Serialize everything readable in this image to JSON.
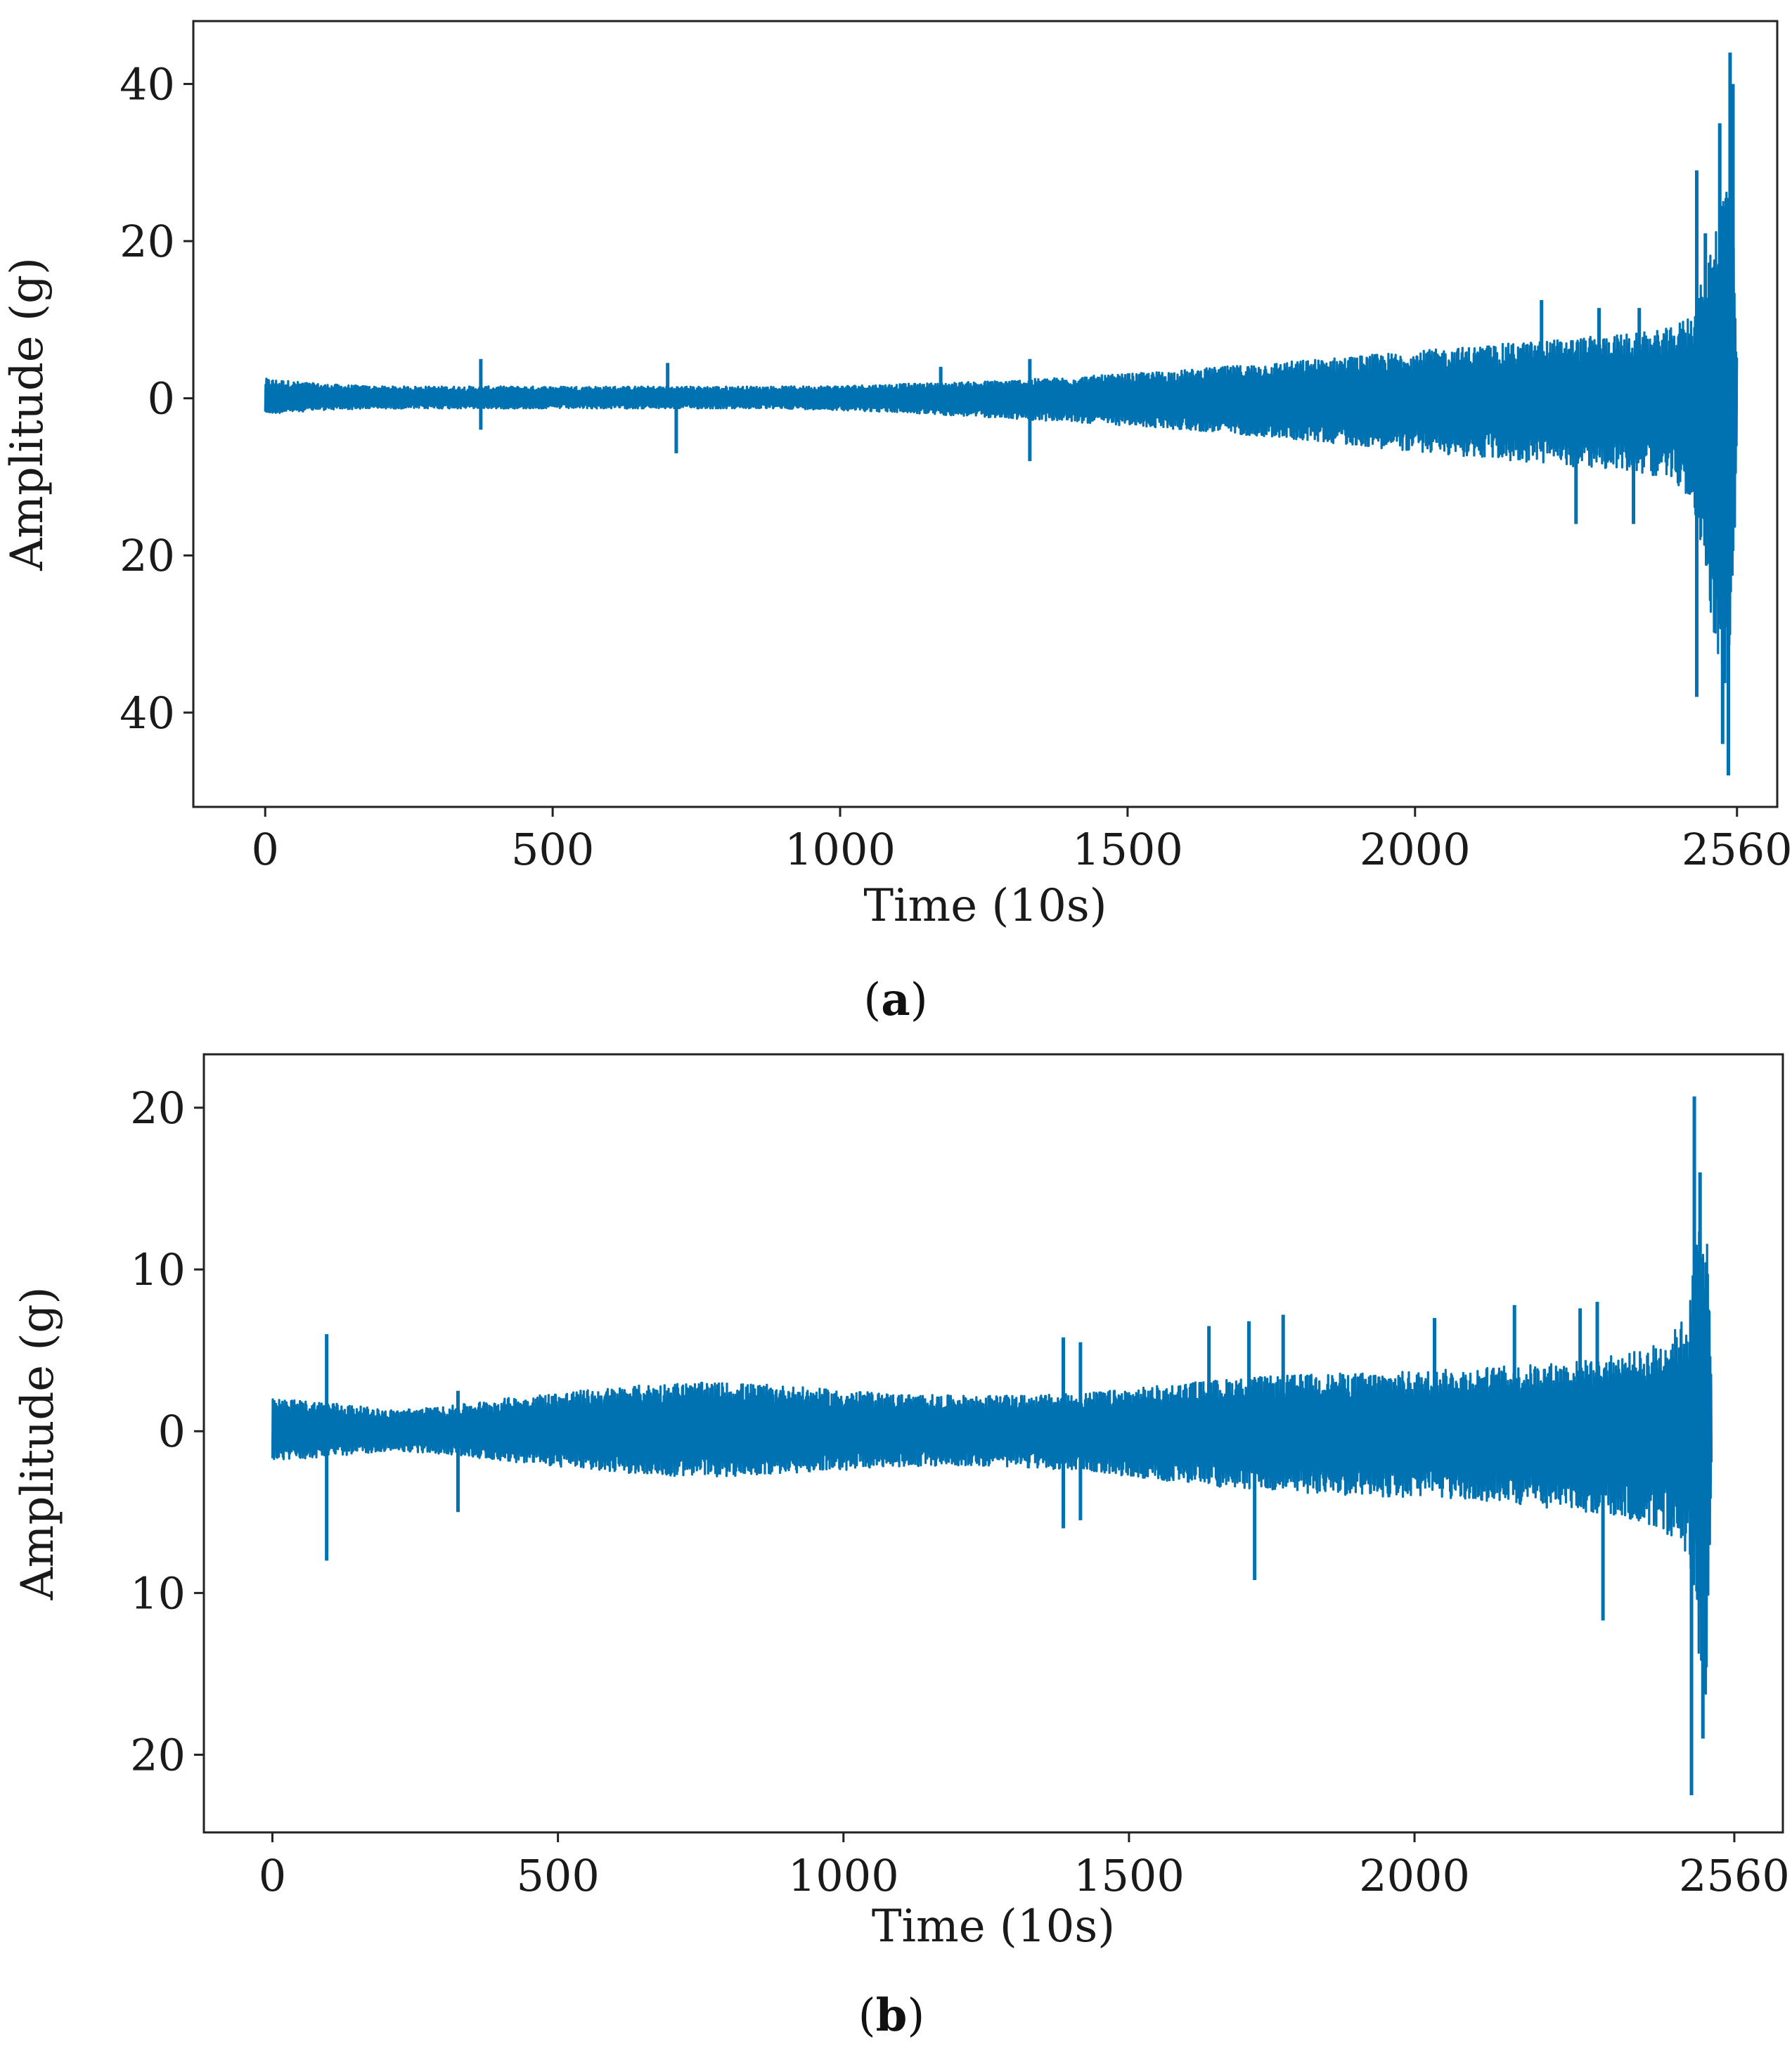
{
  "chart_data": [
    {
      "type": "line",
      "panel_label": "a",
      "title": "",
      "xlabel": "Time (10s)",
      "ylabel": "Amplitude (g)",
      "xlim": [
        -125,
        2630
      ],
      "ylim": [
        -52,
        48
      ],
      "xticks": [
        0,
        500,
        1000,
        1500,
        2000,
        2560
      ],
      "xtick_labels": [
        "0",
        "500",
        "1000",
        "1500",
        "2000",
        "2560"
      ],
      "yticks": [
        40,
        20,
        0,
        -20,
        -40
      ],
      "ytick_labels": [
        "40",
        "20",
        "0",
        "20",
        "40"
      ],
      "grid": false,
      "line_color": "#0072b2",
      "envelope": {
        "x": [
          0,
          100,
          200,
          300,
          400,
          500,
          600,
          700,
          800,
          900,
          1000,
          1100,
          1200,
          1300,
          1400,
          1500,
          1600,
          1700,
          1800,
          1900,
          2000,
          2100,
          2200,
          2300,
          2400,
          2450,
          2480,
          2500,
          2520,
          2540,
          2550,
          2560
        ],
        "upper": [
          2.5,
          1.8,
          1.5,
          1.5,
          1.5,
          1.5,
          1.5,
          1.5,
          1.5,
          1.5,
          1.6,
          1.8,
          2.0,
          2.3,
          2.7,
          3.1,
          3.6,
          4.2,
          4.8,
          5.4,
          6.0,
          6.6,
          7.2,
          7.8,
          8.4,
          9.0,
          11.0,
          15.0,
          22.0,
          30.0,
          30.0,
          5.0
        ],
        "lower": [
          -2.0,
          -1.5,
          -1.3,
          -1.3,
          -1.3,
          -1.3,
          -1.3,
          -1.3,
          -1.3,
          -1.3,
          -1.5,
          -1.8,
          -2.2,
          -2.6,
          -3.0,
          -3.5,
          -4.0,
          -4.6,
          -5.3,
          -6.0,
          -6.8,
          -7.5,
          -8.2,
          -8.8,
          -9.5,
          -10.5,
          -13.0,
          -20.0,
          -30.0,
          -38.0,
          -38.0,
          -5.0
        ]
      },
      "spikes": [
        {
          "x": 375,
          "value": 5
        },
        {
          "x": 375,
          "value": -4
        },
        {
          "x": 700,
          "value": 4.5
        },
        {
          "x": 715,
          "value": -7
        },
        {
          "x": 1175,
          "value": 4
        },
        {
          "x": 1330,
          "value": 5
        },
        {
          "x": 1330,
          "value": -8
        },
        {
          "x": 2220,
          "value": 12.5
        },
        {
          "x": 2320,
          "value": 11.5
        },
        {
          "x": 2390,
          "value": 11.5
        },
        {
          "x": 2280,
          "value": -16
        },
        {
          "x": 2380,
          "value": -16
        },
        {
          "x": 2490,
          "value": 29
        },
        {
          "x": 2505,
          "value": 21
        },
        {
          "x": 2530,
          "value": 35
        },
        {
          "x": 2548,
          "value": 44
        },
        {
          "x": 2553,
          "value": 40
        },
        {
          "x": 2490,
          "value": -38
        },
        {
          "x": 2545,
          "value": -48
        },
        {
          "x": 2535,
          "value": -44
        }
      ]
    },
    {
      "type": "line",
      "panel_label": "b",
      "title": "",
      "xlabel": "Time (10s)",
      "ylabel": "Amplitude (g)",
      "xlim": [
        -120,
        2645
      ],
      "ylim": [
        -24.8,
        23.3
      ],
      "xticks": [
        0,
        500,
        1000,
        1500,
        2000,
        2560
      ],
      "xtick_labels": [
        "0",
        "500",
        "1000",
        "1500",
        "2000",
        "2560"
      ],
      "yticks": [
        20,
        10,
        0,
        -10,
        -20
      ],
      "ytick_labels": [
        "20",
        "10",
        "0",
        "10",
        "20"
      ],
      "grid": false,
      "line_color": "#0072b2",
      "envelope": {
        "x": [
          0,
          100,
          200,
          300,
          400,
          500,
          600,
          700,
          800,
          900,
          1000,
          1100,
          1200,
          1300,
          1400,
          1500,
          1600,
          1700,
          1800,
          1900,
          2000,
          2100,
          2200,
          2300,
          2400,
          2450,
          2480,
          2500,
          2510,
          2520
        ],
        "upper": [
          2.0,
          1.8,
          1.3,
          1.5,
          2.0,
          2.4,
          2.7,
          3.0,
          3.0,
          2.8,
          2.5,
          2.3,
          2.2,
          2.2,
          2.3,
          2.6,
          3.0,
          3.3,
          3.5,
          3.6,
          3.7,
          3.9,
          4.1,
          4.4,
          5.0,
          6.0,
          7.5,
          14.0,
          15.5,
          3.0
        ],
        "lower": [
          -1.8,
          -1.6,
          -1.2,
          -1.4,
          -1.8,
          -2.2,
          -2.5,
          -2.8,
          -2.8,
          -2.6,
          -2.4,
          -2.2,
          -2.1,
          -2.2,
          -2.4,
          -2.8,
          -3.2,
          -3.6,
          -3.8,
          -4.0,
          -4.1,
          -4.3,
          -4.6,
          -5.0,
          -5.6,
          -6.5,
          -8.0,
          -15.0,
          -18.5,
          -3.0
        ]
      },
      "spikes": [
        {
          "x": 95,
          "value": 6
        },
        {
          "x": 95,
          "value": -8
        },
        {
          "x": 325,
          "value": 2.5
        },
        {
          "x": 325,
          "value": -5
        },
        {
          "x": 1385,
          "value": 5.8
        },
        {
          "x": 1415,
          "value": 5.5
        },
        {
          "x": 1385,
          "value": -6
        },
        {
          "x": 1415,
          "value": -5.5
        },
        {
          "x": 1640,
          "value": 6.5
        },
        {
          "x": 1710,
          "value": 6.8
        },
        {
          "x": 1770,
          "value": 7.2
        },
        {
          "x": 1720,
          "value": -9.2
        },
        {
          "x": 2035,
          "value": 7.0
        },
        {
          "x": 2175,
          "value": 7.8
        },
        {
          "x": 2290,
          "value": 7.6
        },
        {
          "x": 2320,
          "value": 8.0
        },
        {
          "x": 2330,
          "value": -11.7
        },
        {
          "x": 2490,
          "value": 20.7
        },
        {
          "x": 2500,
          "value": 16
        },
        {
          "x": 2485,
          "value": -22.5
        },
        {
          "x": 2505,
          "value": -19
        }
      ]
    }
  ]
}
